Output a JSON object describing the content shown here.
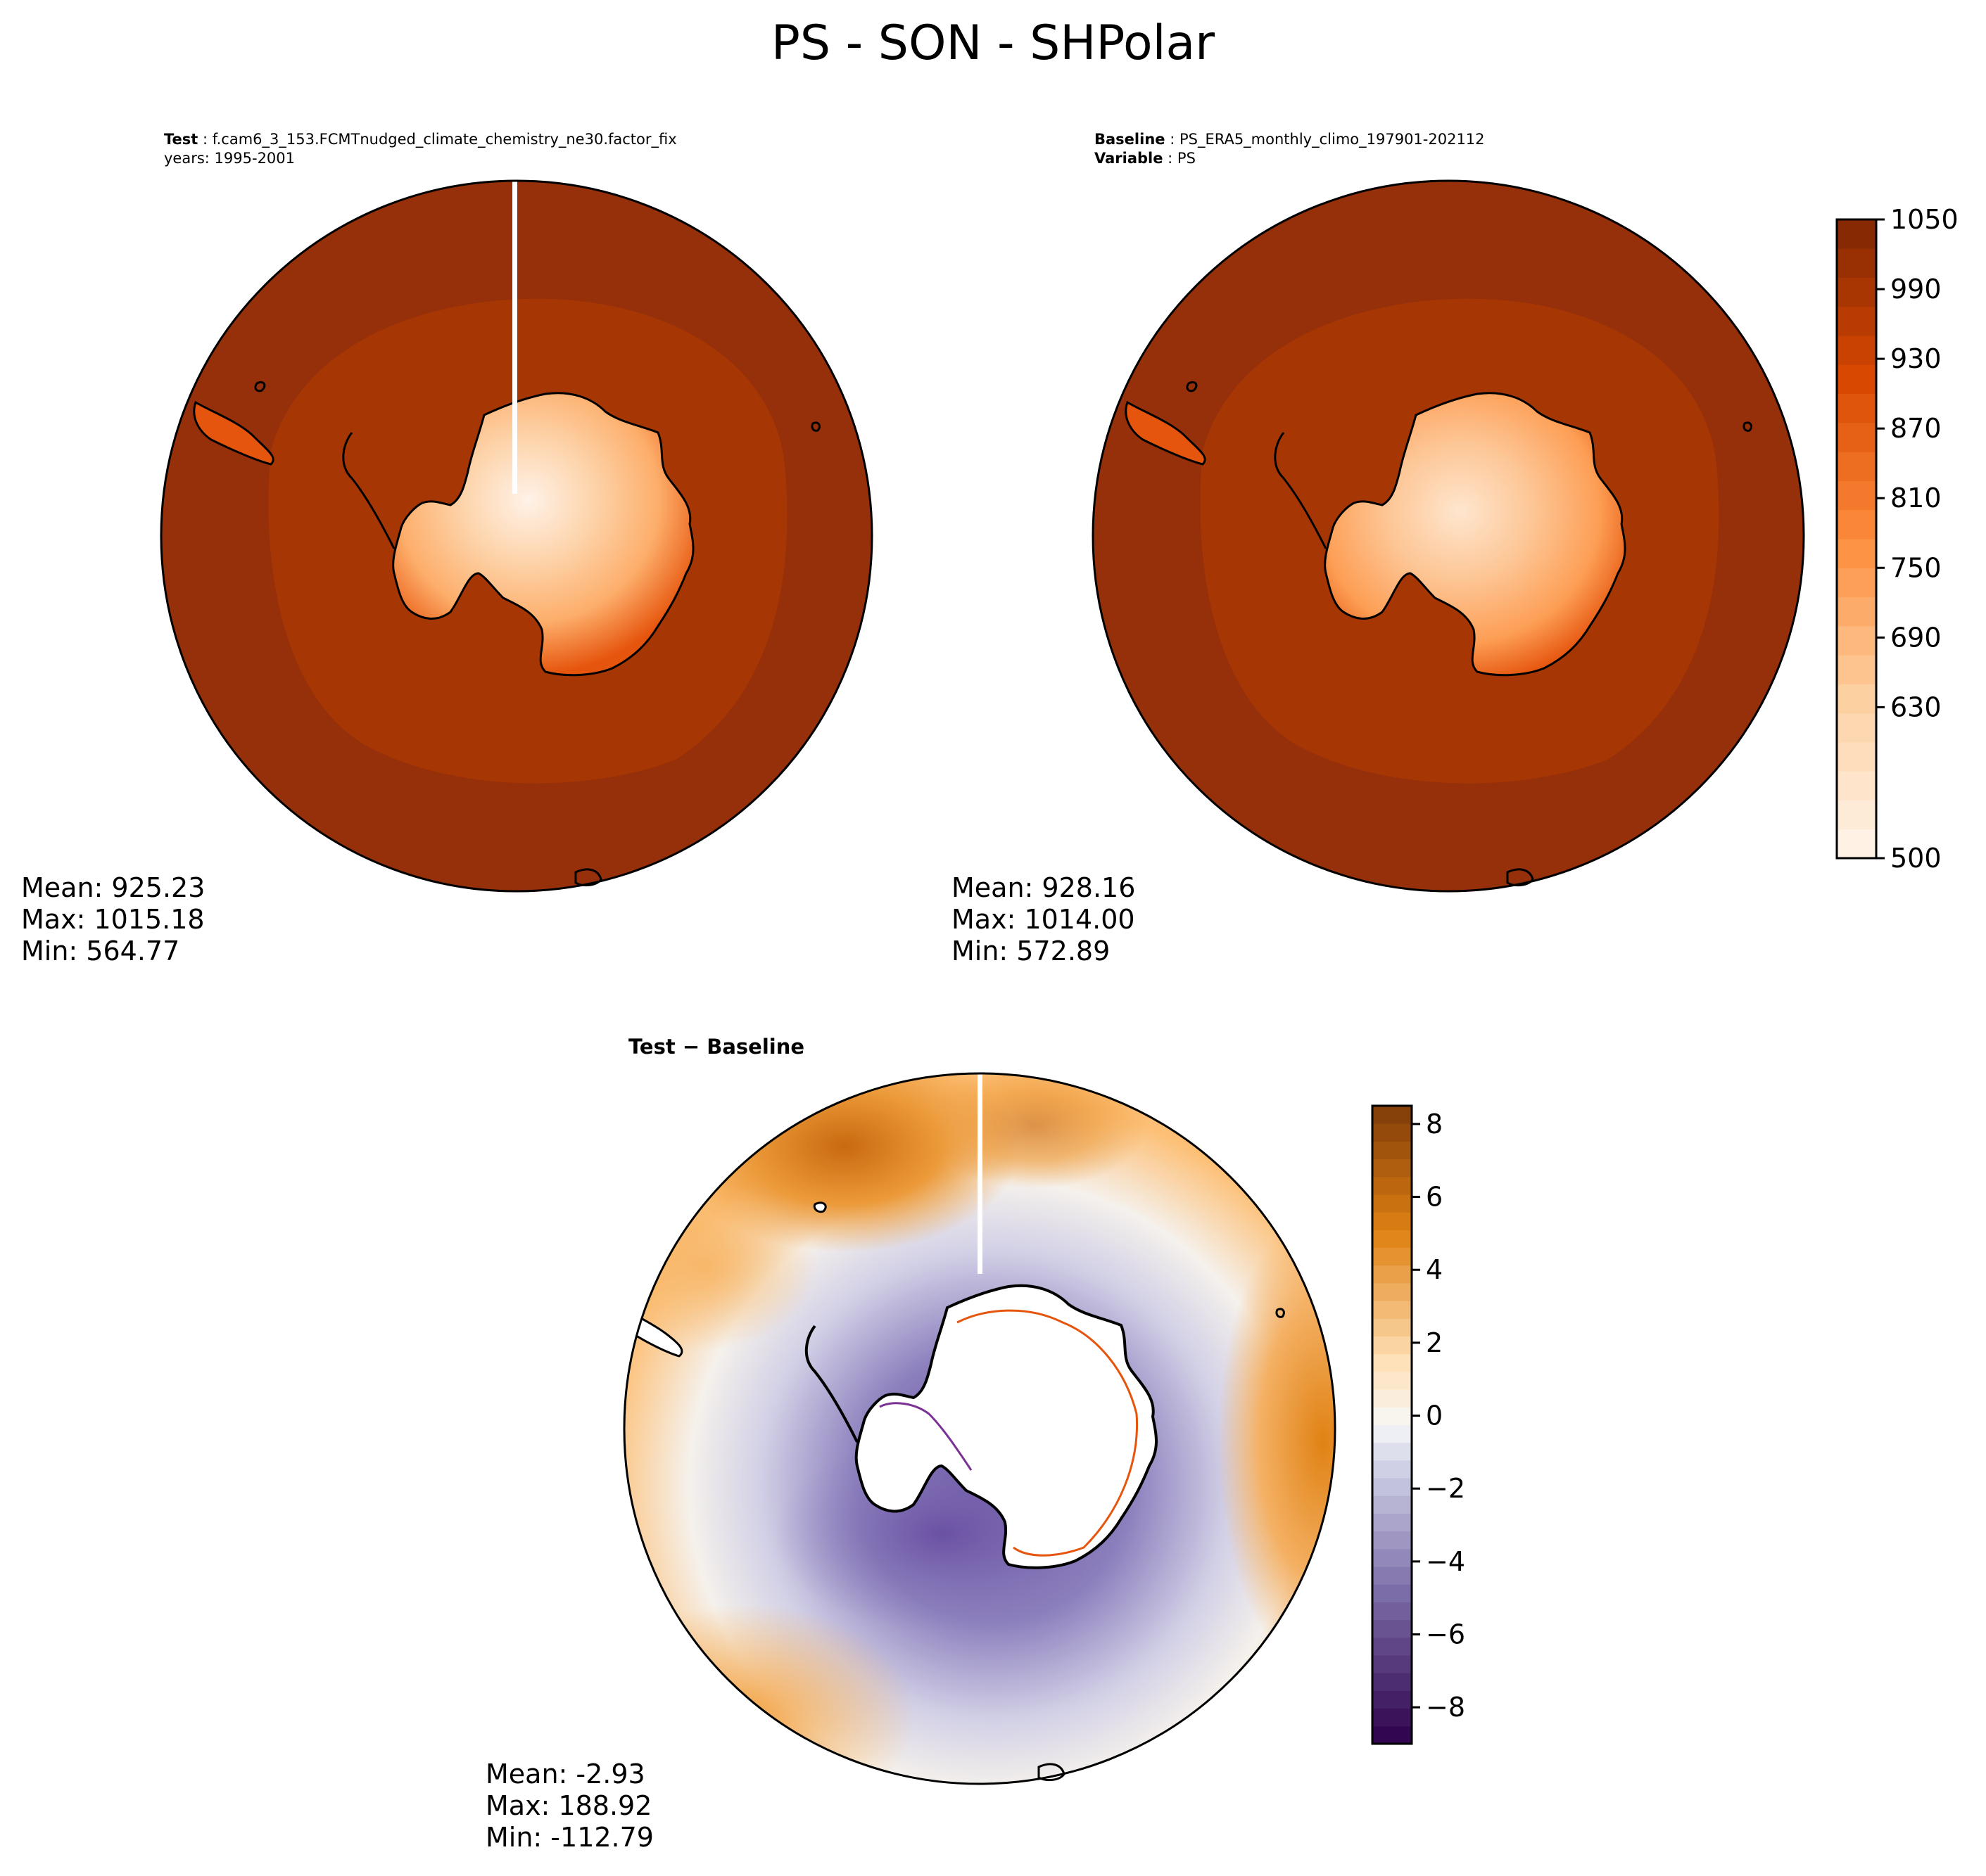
{
  "figure_title": "PS - SON - SHPolar",
  "panels": {
    "test": {
      "label": "Test",
      "case": "f.cam6_3_153.FCMTnudged_climate_chemistry_ne30.factor_fix",
      "years": "years: 1995-2001",
      "stats": {
        "mean": "Mean: 925.23",
        "max": "Max: 1015.18",
        "min": "Min: 564.77"
      }
    },
    "baseline": {
      "label": "Baseline",
      "case": "PS_ERA5_monthly_climo_197901-202112",
      "variable_label": "Variable",
      "variable": "PS",
      "stats": {
        "mean": "Mean: 928.16",
        "max": "Max: 1014.00",
        "min": "Min: 572.89"
      }
    },
    "diff": {
      "label_a": "Test",
      "label_b": "Baseline",
      "stats": {
        "mean": "Mean: -2.93",
        "max": "Max: 188.92",
        "min": "Min: -112.79"
      }
    }
  },
  "colorbars": {
    "ps": {
      "colormap": "Oranges",
      "range": [
        500,
        1050
      ],
      "tick_values": [
        500,
        630,
        690,
        750,
        810,
        870,
        930,
        990,
        1050
      ],
      "tick_labels": [
        "500",
        "630",
        "690",
        "750",
        "810",
        "870",
        "930",
        "990",
        "1050"
      ]
    },
    "diff": {
      "colormap": "PuOr_r",
      "range": [
        -9,
        8.5
      ],
      "tick_values": [
        -8,
        -6,
        -4,
        -2,
        0,
        2,
        4,
        6,
        8
      ],
      "tick_labels": [
        "−8",
        "−6",
        "−4",
        "−2",
        "0",
        "2",
        "4",
        "6",
        "8"
      ]
    }
  },
  "colors": {
    "ocean": "#96300a",
    "shelf": "#a63603",
    "coast": "#000000",
    "seam": "#ffffff"
  }
}
